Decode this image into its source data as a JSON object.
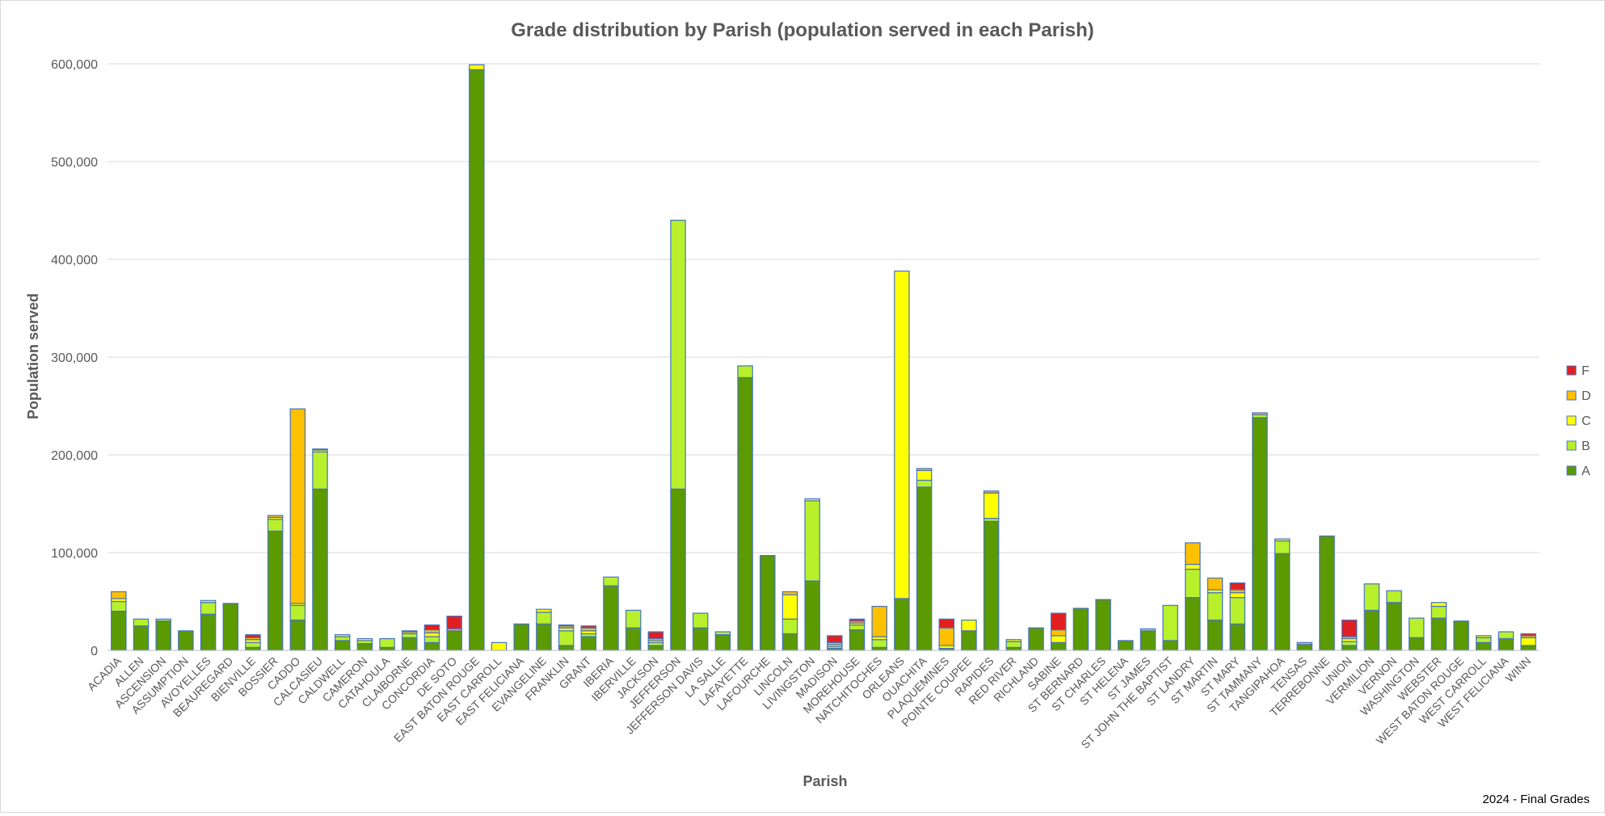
{
  "chart_data": {
    "type": "bar",
    "stacked": true,
    "title": "Grade distribution by Parish (population served in each Parish)",
    "xlabel": "Parish",
    "ylabel": "Population served",
    "footnote": "2024 - Final Grades",
    "ylim": [
      0,
      600000
    ],
    "yticks": [
      0,
      100000,
      200000,
      300000,
      400000,
      500000,
      600000
    ],
    "ytick_labels": [
      "0",
      "100,000",
      "200,000",
      "300,000",
      "400,000",
      "500,000",
      "600,000"
    ],
    "grid": true,
    "legend_position": "right",
    "categories": [
      "ACADIA",
      "ALLEN",
      "ASCENSION",
      "ASSUMPTION",
      "AVOYELLES",
      "BEAUREGARD",
      "BIENVILLE",
      "BOSSIER",
      "CADDO",
      "CALCASIEU",
      "CALDWELL",
      "CAMERON",
      "CATAHOULA",
      "CLAIBORNE",
      "CONCORDIA",
      "DE SOTO",
      "EAST BATON ROUGE",
      "EAST CARROLL",
      "EAST FELICIANA",
      "EVANGELINE",
      "FRANKLIN",
      "GRANT",
      "IBERIA",
      "IBERVILLE",
      "JACKSON",
      "JEFFERSON",
      "JEFFERSON DAVIS",
      "LA SALLE",
      "LAFAYETTE",
      "LAFOURCHE",
      "LINCOLN",
      "LIVINGSTON",
      "MADISON",
      "MOREHOUSE",
      "NATCHITOCHES",
      "ORLEANS",
      "OUACHITA",
      "PLAQUEMINES",
      "POINTE COUPEE",
      "RAPIDES",
      "RED RIVER",
      "RICHLAND",
      "SABINE",
      "ST BERNARD",
      "ST CHARLES",
      "ST HELENA",
      "ST JAMES",
      "ST JOHN THE BAPTIST",
      "ST LANDRY",
      "ST MARTIN",
      "ST MARY",
      "ST TAMMANY",
      "TANGIPAHOA",
      "TENSAS",
      "TERREBONNE",
      "UNION",
      "VERMILION",
      "VERNON",
      "WASHINGTON",
      "WEBSTER",
      "WEST BATON ROUGE",
      "WEST CARROLL",
      "WEST FELICIANA",
      "WINN"
    ],
    "series": [
      {
        "name": "A",
        "color": "#5b9a00",
        "values": [
          40000,
          25000,
          30000,
          20000,
          37000,
          48000,
          3000,
          122000,
          31000,
          165000,
          10000,
          7000,
          3000,
          13000,
          8000,
          20000,
          594000,
          0,
          27000,
          27000,
          5000,
          14000,
          66000,
          23000,
          5000,
          165000,
          23000,
          16000,
          279000,
          97000,
          17000,
          71000,
          2000,
          21000,
          3000,
          53000,
          167000,
          2000,
          20000,
          132000,
          3000,
          23000,
          8000,
          43000,
          52000,
          10000,
          20000,
          10000,
          54000,
          31000,
          27000,
          238000,
          99000,
          6000,
          117000,
          5000,
          41000,
          49000,
          13000,
          33000,
          30000,
          8000,
          12000,
          5000
        ]
      },
      {
        "name": "B",
        "color": "#b8f02c",
        "values": [
          10000,
          7000,
          2000,
          0,
          12000,
          0,
          5000,
          12000,
          15000,
          38000,
          4000,
          3000,
          9000,
          4000,
          6000,
          0,
          0,
          0,
          0,
          12000,
          15000,
          3000,
          9000,
          18000,
          3000,
          275000,
          15000,
          3000,
          12000,
          0,
          15000,
          82000,
          2000,
          5000,
          8000,
          0,
          7000,
          0,
          0,
          3000,
          6000,
          0,
          0,
          0,
          0,
          0,
          2000,
          36000,
          29000,
          28000,
          27000,
          3000,
          13000,
          0,
          0,
          4000,
          27000,
          12000,
          20000,
          12000,
          0,
          5000,
          7000,
          0
        ]
      },
      {
        "name": "C",
        "color": "#ffff00",
        "values": [
          3000,
          0,
          0,
          0,
          2000,
          0,
          3000,
          2000,
          2000,
          2000,
          2000,
          2000,
          0,
          0,
          4000,
          0,
          5000,
          8000,
          0,
          3000,
          3000,
          3000,
          0,
          0,
          2000,
          0,
          0,
          0,
          0,
          0,
          25000,
          2000,
          2000,
          2000,
          3000,
          335000,
          10000,
          3000,
          11000,
          26000,
          2000,
          0,
          7000,
          0,
          0,
          0,
          0,
          0,
          5000,
          3000,
          5000,
          0,
          2000,
          0,
          0,
          3000,
          0,
          0,
          0,
          4000,
          0,
          2000,
          0,
          8000
        ]
      },
      {
        "name": "D",
        "color": "#ffc000",
        "values": [
          7000,
          0,
          0,
          0,
          0,
          0,
          2000,
          2000,
          199000,
          0,
          0,
          0,
          0,
          2000,
          3000,
          2000,
          0,
          0,
          0,
          0,
          2000,
          3000,
          0,
          0,
          2000,
          0,
          0,
          0,
          0,
          0,
          3000,
          0,
          2000,
          2000,
          31000,
          0,
          2000,
          18000,
          0,
          2000,
          0,
          0,
          6000,
          0,
          0,
          0,
          0,
          0,
          22000,
          12000,
          3000,
          2000,
          0,
          2000,
          0,
          2000,
          0,
          0,
          0,
          0,
          0,
          0,
          0,
          2000
        ]
      },
      {
        "name": "F",
        "color": "#e02020",
        "values": [
          0,
          0,
          0,
          0,
          0,
          0,
          3000,
          0,
          0,
          1000,
          0,
          0,
          0,
          1000,
          5000,
          13000,
          0,
          0,
          0,
          0,
          1000,
          2000,
          0,
          0,
          7000,
          0,
          0,
          0,
          0,
          0,
          0,
          0,
          7000,
          2000,
          0,
          0,
          0,
          9000,
          0,
          0,
          0,
          0,
          17000,
          0,
          0,
          0,
          0,
          0,
          0,
          0,
          7000,
          0,
          0,
          0,
          0,
          17000,
          0,
          0,
          0,
          0,
          0,
          0,
          0,
          2000
        ]
      }
    ]
  }
}
